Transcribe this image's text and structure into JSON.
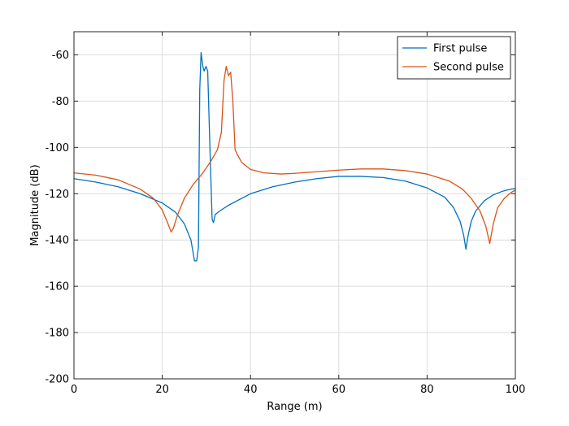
{
  "chart_data": {
    "type": "line",
    "title": "",
    "xlabel": "Range (m)",
    "ylabel": "Magnitude (dB)",
    "xlim": [
      0,
      100
    ],
    "ylim": [
      -200,
      -50
    ],
    "xticks": [
      0,
      20,
      40,
      60,
      80,
      100
    ],
    "yticks": [
      -200,
      -180,
      -160,
      -140,
      -120,
      -100,
      -80,
      -60
    ],
    "grid": true,
    "legend_position": "top-right",
    "series": [
      {
        "name": "First pulse",
        "color": "#0072BD",
        "x": [
          0,
          5,
          10,
          15,
          20,
          23,
          25,
          26.5,
          27.3,
          27.8,
          28.2,
          28.5,
          28.8,
          29.2,
          29.5,
          29.9,
          30.3,
          30.8,
          31.3,
          31.6,
          32,
          33,
          35,
          40,
          45,
          50,
          55,
          60,
          65,
          70,
          75,
          80,
          84,
          86,
          87.5,
          88.3,
          88.8,
          89.3,
          90,
          91,
          93,
          95,
          97,
          99,
          100
        ],
        "y": [
          -113.5,
          -115,
          -117,
          -120,
          -124,
          -128,
          -133,
          -140,
          -149,
          -149,
          -143,
          -75,
          -59,
          -65,
          -67,
          -65,
          -67,
          -100,
          -131,
          -132.5,
          -129,
          -127.5,
          -125,
          -120,
          -117,
          -115,
          -113.5,
          -112.5,
          -112.5,
          -113,
          -114.5,
          -117.5,
          -121.5,
          -126,
          -132,
          -138,
          -144,
          -138,
          -132,
          -127.5,
          -123,
          -120.5,
          -119,
          -118,
          -117.8
        ]
      },
      {
        "name": "Second pulse",
        "color": "#D95319",
        "x": [
          0,
          5,
          10,
          15,
          18,
          20,
          21.3,
          22,
          22.5,
          23.5,
          25,
          27,
          29,
          31,
          32.5,
          33.4,
          34,
          34.5,
          35,
          35.5,
          36,
          36.5,
          37,
          38,
          40,
          43,
          47,
          50,
          55,
          60,
          65,
          70,
          75,
          80,
          85,
          88,
          90,
          92,
          93.3,
          94.2,
          95,
          96,
          97.5,
          99,
          100
        ],
        "y": [
          -111,
          -112,
          -114,
          -118,
          -122,
          -127,
          -133,
          -136.5,
          -135,
          -129,
          -122,
          -116,
          -111.5,
          -106,
          -101,
          -93.5,
          -71,
          -65,
          -69,
          -67.5,
          -80,
          -101,
          -103,
          -106.5,
          -109.5,
          -111,
          -111.5,
          -111.2,
          -110.5,
          -109.8,
          -109.3,
          -109.3,
          -110,
          -111.5,
          -114.5,
          -118,
          -122,
          -127.5,
          -134,
          -141.5,
          -133,
          -126,
          -122,
          -119.5,
          -118.5
        ]
      }
    ]
  }
}
